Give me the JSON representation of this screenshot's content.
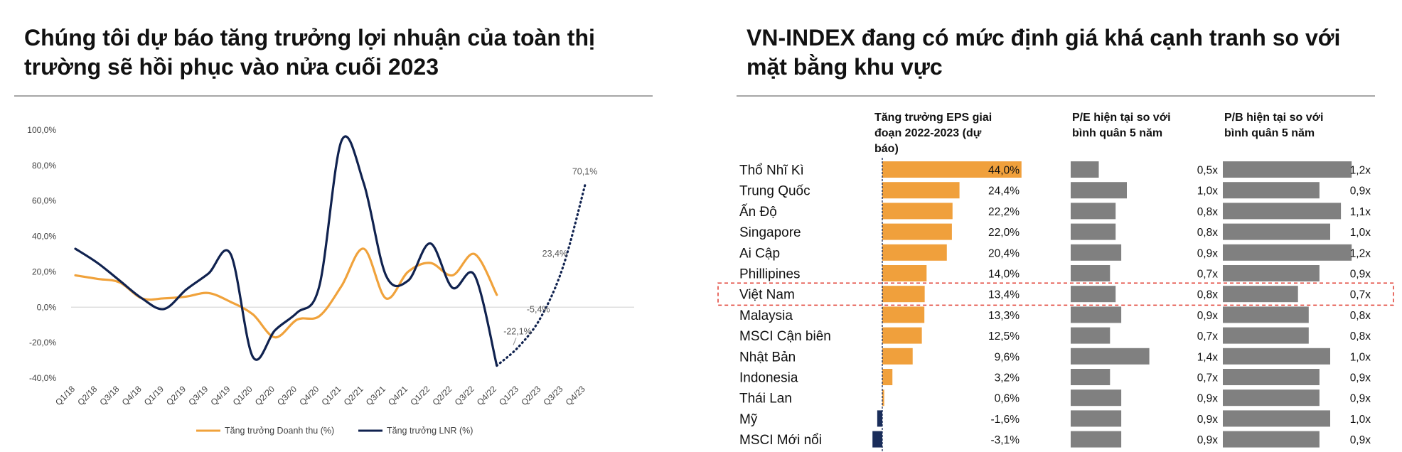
{
  "left_title": "Chúng tôi dự báo tăng trưởng lợi nhuận của toàn thị trường sẽ hồi phục vào nửa cuối 2023",
  "right_title": "VN-INDEX đang có mức định giá khá cạnh tranh so với mặt bằng khu vực",
  "chart_data": [
    {
      "type": "line",
      "categories": [
        "Q1/18",
        "Q2/18",
        "Q3/18",
        "Q4/18",
        "Q1/19",
        "Q2/19",
        "Q3/19",
        "Q4/19",
        "Q1/20",
        "Q2/20",
        "Q3/20",
        "Q4/20",
        "Q1/21",
        "Q2/21",
        "Q3/21",
        "Q4/21",
        "Q1/22",
        "Q2/22",
        "Q3/22",
        "Q4/22",
        "Q1/23",
        "Q2/23",
        "Q3/23",
        "Q4/23"
      ],
      "y_tick_labels": [
        "100,0%",
        "80,0%",
        "60,0%",
        "40,0%",
        "20,0%",
        "0,0%",
        "-20,0%",
        "-40,0%"
      ],
      "ylim": [
        -40,
        100
      ],
      "series": [
        {
          "name": "Tăng trưởng Doanh thu (%)",
          "color": "#f0a23b",
          "values": [
            18,
            16,
            14,
            5,
            5,
            6,
            8,
            3,
            -4,
            -17,
            -7,
            -5,
            12,
            33,
            5,
            20,
            25,
            18,
            30,
            7,
            null,
            null,
            null,
            null
          ]
        },
        {
          "name": "Tăng trưởng LNR (%)",
          "color": "#10224f",
          "values": [
            33,
            25,
            15,
            5,
            -1,
            10,
            19,
            30,
            -28,
            -13,
            -3,
            12,
            94,
            70,
            18,
            15,
            36,
            11,
            18,
            -33,
            null,
            null,
            null,
            null
          ]
        },
        {
          "name": "",
          "color": "#10224f",
          "style": "dotted",
          "values": [
            null,
            null,
            null,
            null,
            null,
            null,
            null,
            null,
            null,
            null,
            null,
            null,
            null,
            null,
            null,
            null,
            null,
            null,
            null,
            -33,
            -22.1,
            -5.4,
            23.4,
            70.1
          ]
        }
      ],
      "annotations": [
        {
          "text": "-22,1%",
          "x": "Q1/23",
          "y": -22.1
        },
        {
          "text": "-5,4%",
          "x": "Q2/23",
          "y": -5.4
        },
        {
          "text": "23,4%",
          "x": "Q3/23",
          "y": 23.4
        },
        {
          "text": "70,1%",
          "x": "Q4/23",
          "y": 70.1
        }
      ],
      "legend_position": "bottom",
      "grid": "zero-line"
    },
    {
      "type": "table",
      "columns": [
        "Tăng trưởng EPS giai đoạn 2022-2023 (dự báo)",
        "P/E hiện tại so với bình quân 5 năm",
        "P/B hiện tại so với bình quân 5 năm"
      ],
      "highlight_row": "Việt Nam",
      "highlight_color": "#e03c31",
      "bar_colors": {
        "eps_positive": "#f0a03c",
        "eps_negative": "#1a2d5a",
        "ratio": "#808080"
      },
      "rows": [
        {
          "country": "Thổ Nhĩ Kì",
          "eps": 44.0,
          "eps_label": "44,0%",
          "pe": 0.5,
          "pe_label": "0,5x",
          "pb": 1.2,
          "pb_label": "1,2x"
        },
        {
          "country": "Trung Quốc",
          "eps": 24.4,
          "eps_label": "24,4%",
          "pe": 1.0,
          "pe_label": "1,0x",
          "pb": 0.9,
          "pb_label": "0,9x"
        },
        {
          "country": "Ấn Độ",
          "eps": 22.2,
          "eps_label": "22,2%",
          "pe": 0.8,
          "pe_label": "0,8x",
          "pb": 1.1,
          "pb_label": "1,1x"
        },
        {
          "country": "Singapore",
          "eps": 22.0,
          "eps_label": "22,0%",
          "pe": 0.8,
          "pe_label": "0,8x",
          "pb": 1.0,
          "pb_label": "1,0x"
        },
        {
          "country": "Ai Cập",
          "eps": 20.4,
          "eps_label": "20,4%",
          "pe": 0.9,
          "pe_label": "0,9x",
          "pb": 1.2,
          "pb_label": "1,2x"
        },
        {
          "country": "Phillipines",
          "eps": 14.0,
          "eps_label": "14,0%",
          "pe": 0.7,
          "pe_label": "0,7x",
          "pb": 0.9,
          "pb_label": "0,9x"
        },
        {
          "country": "Việt Nam",
          "eps": 13.4,
          "eps_label": "13,4%",
          "pe": 0.8,
          "pe_label": "0,8x",
          "pb": 0.7,
          "pb_label": "0,7x"
        },
        {
          "country": "Malaysia",
          "eps": 13.3,
          "eps_label": "13,3%",
          "pe": 0.9,
          "pe_label": "0,9x",
          "pb": 0.8,
          "pb_label": "0,8x"
        },
        {
          "country": "MSCI Cận biên",
          "eps": 12.5,
          "eps_label": "12,5%",
          "pe": 0.7,
          "pe_label": "0,7x",
          "pb": 0.8,
          "pb_label": "0,8x"
        },
        {
          "country": "Nhật Bản",
          "eps": 9.6,
          "eps_label": "9,6%",
          "pe": 1.4,
          "pe_label": "1,4x",
          "pb": 1.0,
          "pb_label": "1,0x"
        },
        {
          "country": "Indonesia",
          "eps": 3.2,
          "eps_label": "3,2%",
          "pe": 0.7,
          "pe_label": "0,7x",
          "pb": 0.9,
          "pb_label": "0,9x"
        },
        {
          "country": "Thái Lan",
          "eps": 0.6,
          "eps_label": "0,6%",
          "pe": 0.9,
          "pe_label": "0,9x",
          "pb": 0.9,
          "pb_label": "0,9x"
        },
        {
          "country": "Mỹ",
          "eps": -1.6,
          "eps_label": "-1,6%",
          "pe": 0.9,
          "pe_label": "0,9x",
          "pb": 1.0,
          "pb_label": "1,0x"
        },
        {
          "country": "MSCI Mới nổi",
          "eps": -3.1,
          "eps_label": "-3,1%",
          "pe": 0.9,
          "pe_label": "0,9x",
          "pb": 0.9,
          "pb_label": "0,9x"
        }
      ]
    }
  ]
}
